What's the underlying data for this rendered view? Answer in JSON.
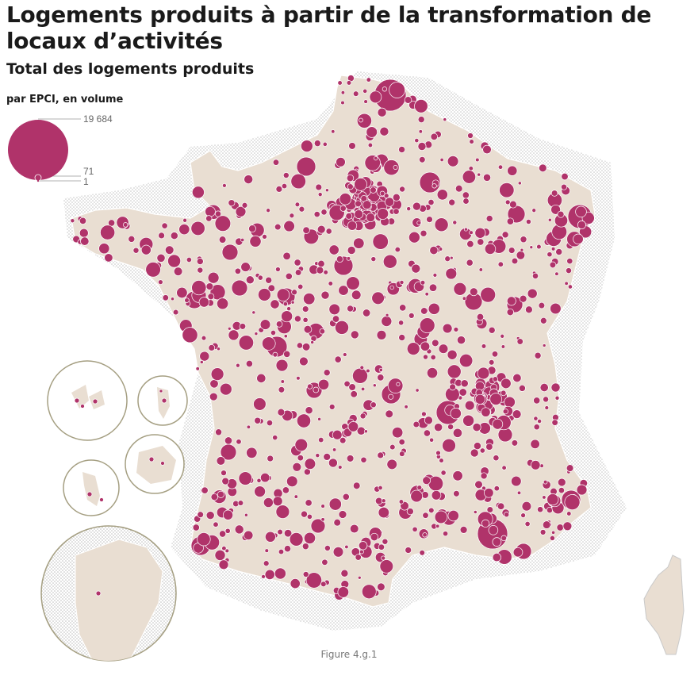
{
  "title": "Logements produits à partir de la transformation de locaux d’activités",
  "subtitle": "Total des logements produits",
  "legend": {
    "label": "par EPCI, en volume",
    "max_value": "19 684",
    "mid_value": "71",
    "min_value": "1"
  },
  "footer": "Figure 4.g.1",
  "colors": {
    "circle": "#b0336a",
    "land": "#e9ded2",
    "sea_stipple": "#c9c9c9",
    "inset_border": "#a59f82"
  }
}
